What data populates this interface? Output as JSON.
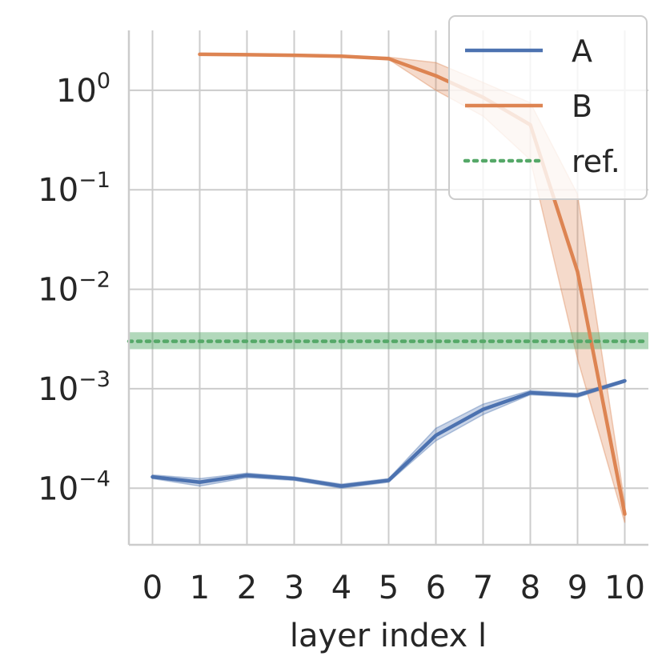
{
  "chart_data": {
    "type": "line",
    "title": "",
    "xlabel": "layer index l",
    "ylabel": "",
    "x": [
      0,
      1,
      2,
      3,
      4,
      5,
      6,
      7,
      8,
      9,
      10
    ],
    "xlim": [
      -0.5,
      10.5
    ],
    "ylim": [
      2.7e-05,
      4.0
    ],
    "yscale": "log",
    "yticks": [
      {
        "value": 1,
        "base": "10",
        "exp": "0"
      },
      {
        "value": 0.1,
        "base": "10",
        "exp": "−1"
      },
      {
        "value": 0.01,
        "base": "10",
        "exp": "−2"
      },
      {
        "value": 0.001,
        "base": "10",
        "exp": "−3"
      },
      {
        "value": 0.0001,
        "base": "10",
        "exp": "−4"
      }
    ],
    "grid": true,
    "legend_position": "top-right",
    "series": [
      {
        "name": "A",
        "color": "#4c72b0",
        "style": "solid",
        "x": [
          0,
          1,
          2,
          3,
          4,
          5,
          6,
          7,
          8,
          9,
          10
        ],
        "y": [
          0.00013,
          0.000115,
          0.000135,
          0.000125,
          0.000105,
          0.00012,
          0.00034,
          0.00062,
          0.00091,
          0.00086,
          0.0012
        ],
        "lower": [
          0.000125,
          0.000105,
          0.000128,
          0.00012,
          0.0001,
          0.000115,
          0.0003,
          0.00055,
          0.00087,
          0.00082,
          0.00116
        ],
        "upper": [
          0.000136,
          0.000125,
          0.000142,
          0.00013,
          0.00011,
          0.000125,
          0.0004,
          0.0007,
          0.00096,
          0.0009,
          0.00124
        ]
      },
      {
        "name": "B",
        "color": "#dd8452",
        "style": "solid",
        "x": [
          1,
          2,
          3,
          4,
          5,
          6,
          7,
          8,
          9,
          10
        ],
        "y": [
          2.3,
          2.28,
          2.25,
          2.2,
          2.08,
          1.4,
          0.85,
          0.45,
          0.015,
          5.5e-05
        ],
        "lower": [
          2.28,
          2.26,
          2.23,
          2.18,
          2.05,
          1.0,
          0.55,
          0.2,
          0.002,
          4.5e-05
        ],
        "upper": [
          2.32,
          2.3,
          2.28,
          2.24,
          2.15,
          1.9,
          1.2,
          0.75,
          0.09,
          7e-05
        ]
      },
      {
        "name": "ref.",
        "color": "#55a868",
        "style": "dotted",
        "y_const": 0.003,
        "band": [
          0.0025,
          0.0037
        ]
      }
    ]
  }
}
